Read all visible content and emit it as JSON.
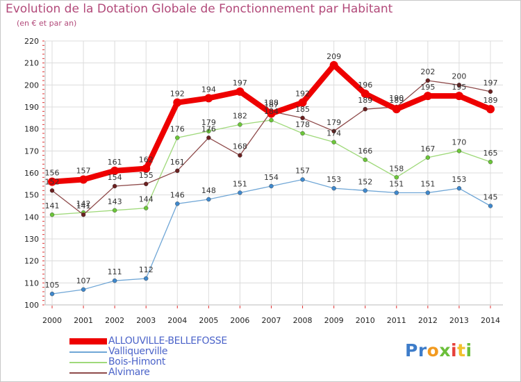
{
  "header": {
    "title": "Evolution de la Dotation Globale de Fonctionnement par Habitant",
    "subtitle": "(en € et par an)"
  },
  "brand": {
    "letters": [
      {
        "ch": "P",
        "color": "#3d7cc9"
      },
      {
        "ch": "r",
        "color": "#3d7cc9"
      },
      {
        "ch": "o",
        "color": "#f29a1f"
      },
      {
        "ch": "x",
        "color": "#6bbf3a"
      },
      {
        "ch": "i",
        "color": "#e6403a"
      },
      {
        "ch": "t",
        "color": "#f2c12e"
      },
      {
        "ch": "i",
        "color": "#6bbf3a"
      }
    ]
  },
  "chart_data": {
    "type": "line",
    "title": "Evolution de la Dotation Globale de Fonctionnement par Habitant",
    "subtitle": "(en € et par an)",
    "xlabel": "",
    "ylabel": "",
    "x": [
      "2000",
      "2001",
      "2002",
      "2003",
      "2004",
      "2005",
      "2006",
      "2007",
      "2008",
      "2009",
      "2010",
      "2011",
      "2012",
      "2013",
      "2014"
    ],
    "ylim": [
      100,
      220
    ],
    "yticks": [
      100,
      110,
      120,
      130,
      140,
      150,
      160,
      170,
      180,
      190,
      200,
      210,
      220
    ],
    "grid": true,
    "legend_position": "bottom-left",
    "series": [
      {
        "name": "ALLOUVILLE-BELLEFOSSE",
        "color": "#ee0000",
        "emphasis": true,
        "values": [
          156,
          157,
          161,
          162,
          192,
          194,
          197,
          187,
          192,
          209,
          196,
          189,
          195,
          195,
          189
        ]
      },
      {
        "name": "Valliquerville",
        "color": "#6fa6d6",
        "marker": "#3f88cc",
        "values": [
          105,
          107,
          111,
          112,
          146,
          148,
          151,
          154,
          157,
          153,
          152,
          151,
          151,
          153,
          145
        ]
      },
      {
        "name": "Bois-Himont",
        "color": "#9fd97a",
        "marker": "#6cc63a",
        "values": [
          141,
          142,
          143,
          144,
          176,
          179,
          182,
          184,
          178,
          174,
          166,
          158,
          167,
          170,
          165
        ]
      },
      {
        "name": "Alvimare",
        "color": "#8e4a4a",
        "marker": "#6b2020",
        "values": [
          152,
          141,
          154,
          155,
          161,
          176,
          168,
          188,
          185,
          179,
          189,
          190,
          202,
          200,
          197
        ]
      }
    ]
  }
}
